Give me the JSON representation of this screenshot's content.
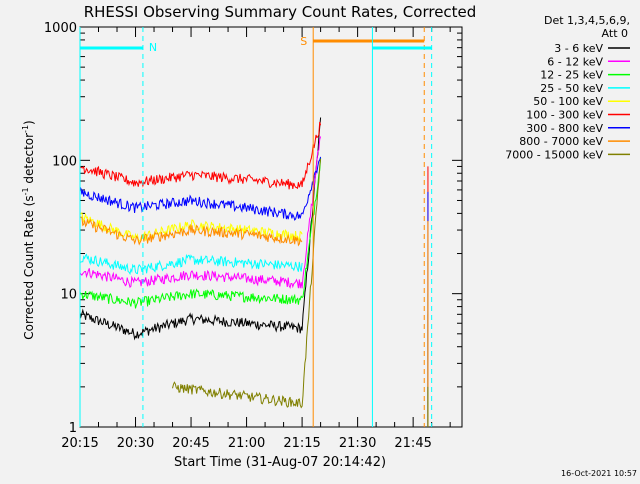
{
  "chart_data": {
    "type": "line",
    "title": "RHESSI Observing Summary Count Rates, Corrected",
    "xlabel": "Start Time (31-Aug-07 20:14:42)",
    "ylabel_main": "Corrected Count Rate (s",
    "ylabel_sup1": "-1",
    "ylabel_mid": " detector",
    "ylabel_sup2": "-1",
    "ylabel_end": ")",
    "y_scale": "log",
    "ylim": [
      1,
      1000
    ],
    "xlim_minutes": [
      20.25,
      21.97
    ],
    "x_ticks": [
      "20:15",
      "20:30",
      "20:45",
      "21:00",
      "21:15",
      "21:30",
      "21:45"
    ],
    "y_ticks": [
      "1",
      "10",
      "100",
      "1000"
    ],
    "legend_header": "Det 1,3,4,5,6,9,",
    "legend_header2": "Att 0",
    "footer_date": "16-Oct-2021 10:57",
    "series": [
      {
        "name": "3 - 6 keV",
        "color": "#000000",
        "values_at_times": {
          "20:15": 7,
          "20:30": 5,
          "20:45": 6.5,
          "21:00": 6,
          "21:15": 5.5,
          "21:20": 200
        }
      },
      {
        "name": "6 - 12 keV",
        "color": "#ff00ff",
        "values_at_times": {
          "20:15": 15,
          "20:30": 12,
          "20:45": 14,
          "21:00": 13,
          "21:15": 12,
          "21:20": 160
        }
      },
      {
        "name": "12 - 25 keV",
        "color": "#00ff00",
        "values_at_times": {
          "20:15": 10,
          "20:30": 8.5,
          "20:45": 10,
          "21:00": 9.5,
          "21:15": 9,
          "21:20": 100
        }
      },
      {
        "name": "25 - 50 keV",
        "color": "#00ffff",
        "values_at_times": {
          "20:15": 19,
          "20:30": 15,
          "20:45": 18,
          "21:00": 17,
          "21:15": 16
        }
      },
      {
        "name": "50 - 100 keV",
        "color": "#ffff00",
        "values_at_times": {
          "20:15": 38,
          "20:30": 26,
          "20:45": 33,
          "21:00": 30,
          "21:15": 27
        }
      },
      {
        "name": "100 - 300 keV",
        "color": "#ff0000",
        "values_at_times": {
          "20:15": 90,
          "20:30": 68,
          "20:45": 78,
          "21:00": 72,
          "21:15": 65,
          "21:20": 190
        }
      },
      {
        "name": "300 - 800 keV",
        "color": "#0000ff",
        "values_at_times": {
          "20:15": 58,
          "20:30": 44,
          "20:45": 50,
          "21:00": 44,
          "21:15": 38,
          "21:20": 110
        }
      },
      {
        "name": "800 - 7000 keV",
        "color": "#ff8c00",
        "values_at_times": {
          "20:15": 35,
          "20:30": 25,
          "20:45": 30,
          "21:00": 28,
          "21:15": 25
        }
      },
      {
        "name": "7000 - 15000 keV",
        "color": "#808000",
        "values_at_times": {
          "20:40": 2,
          "21:15": 1.5,
          "21:20": 110
        }
      }
    ],
    "annotations": [
      {
        "label": "N",
        "color": "#00ffff",
        "text_time": "20:32"
      },
      {
        "label": "S",
        "color": "#ff8c00",
        "text_time": "21:18"
      }
    ]
  }
}
